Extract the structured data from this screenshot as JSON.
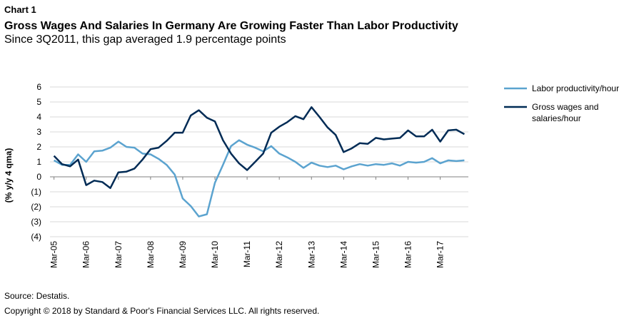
{
  "header": {
    "chart_label": "Chart 1",
    "title": "Gross Wages And Salaries In Germany Are Growing Faster Than Labor Productivity",
    "subtitle": "Since 3Q2011, this gap averaged 1.9 percentage points"
  },
  "footer": {
    "source": "Source: Destatis.",
    "copyright": "Copyright © 2018 by Standard & Poor's Financial Services LLC. All rights reserved."
  },
  "chart_data": {
    "type": "line",
    "ylabel": "(% y/y 4 qma)",
    "xlabel": "",
    "ylim": [
      -4,
      6
    ],
    "yticks": [
      6,
      5,
      4,
      3,
      2,
      1,
      0,
      -1,
      -2,
      -3,
      -4
    ],
    "ytick_labels": [
      "6",
      "5",
      "4",
      "3",
      "2",
      "1",
      "0",
      "(1)",
      "(2)",
      "(3)",
      "(4)"
    ],
    "x": [
      "Mar-05",
      "Jun-05",
      "Sep-05",
      "Dec-05",
      "Mar-06",
      "Jun-06",
      "Sep-06",
      "Dec-06",
      "Mar-07",
      "Jun-07",
      "Sep-07",
      "Dec-07",
      "Mar-08",
      "Jun-08",
      "Sep-08",
      "Dec-08",
      "Mar-09",
      "Jun-09",
      "Sep-09",
      "Dec-09",
      "Mar-10",
      "Jun-10",
      "Sep-10",
      "Dec-10",
      "Mar-11",
      "Jun-11",
      "Sep-11",
      "Dec-11",
      "Mar-12",
      "Jun-12",
      "Sep-12",
      "Dec-12",
      "Mar-13",
      "Jun-13",
      "Sep-13",
      "Dec-13",
      "Mar-14",
      "Jun-14",
      "Sep-14",
      "Dec-14",
      "Mar-15",
      "Jun-15",
      "Sep-15",
      "Dec-15",
      "Mar-16",
      "Jun-16",
      "Sep-16",
      "Dec-16",
      "Mar-17",
      "Jun-17",
      "Sep-17",
      "Dec-17"
    ],
    "xtick_labels": [
      "Mar-05",
      "Mar-06",
      "Mar-07",
      "Mar-08",
      "Mar-09",
      "Mar-10",
      "Mar-11",
      "Mar-12",
      "Mar-13",
      "Mar-14",
      "Mar-15",
      "Mar-16",
      "Mar-17"
    ],
    "grid": "horizontal",
    "legend_position": "right",
    "series": [
      {
        "name": "Labor productivity/hour",
        "color": "#5ba3cf",
        "values": [
          1.1,
          0.8,
          0.8,
          1.5,
          1.0,
          1.7,
          1.75,
          1.95,
          2.35,
          2.0,
          1.95,
          1.55,
          1.5,
          1.2,
          0.8,
          0.15,
          -1.45,
          -1.95,
          -2.65,
          -2.5,
          -0.4,
          0.8,
          2.05,
          2.45,
          2.15,
          1.95,
          1.7,
          2.05,
          1.55,
          1.3,
          1.0,
          0.6,
          0.95,
          0.75,
          0.65,
          0.75,
          0.5,
          0.7,
          0.85,
          0.75,
          0.85,
          0.8,
          0.9,
          0.75,
          1.0,
          0.95,
          1.0,
          1.25,
          0.9,
          1.1,
          1.05,
          1.1
        ]
      },
      {
        "name": "Gross wages and salaries/hour",
        "color": "#002b55",
        "values": [
          1.4,
          0.85,
          0.7,
          1.15,
          -0.55,
          -0.25,
          -0.35,
          -0.75,
          0.3,
          0.35,
          0.55,
          1.15,
          1.85,
          1.95,
          2.4,
          2.95,
          2.95,
          4.1,
          4.45,
          3.95,
          3.7,
          2.45,
          1.55,
          0.9,
          0.45,
          1.0,
          1.55,
          2.95,
          3.35,
          3.65,
          4.05,
          3.85,
          4.65,
          4.0,
          3.3,
          2.8,
          1.65,
          1.9,
          2.25,
          2.2,
          2.6,
          2.5,
          2.55,
          2.6,
          3.1,
          2.7,
          2.7,
          3.15,
          2.35,
          3.1,
          3.15,
          2.85
        ]
      }
    ]
  }
}
